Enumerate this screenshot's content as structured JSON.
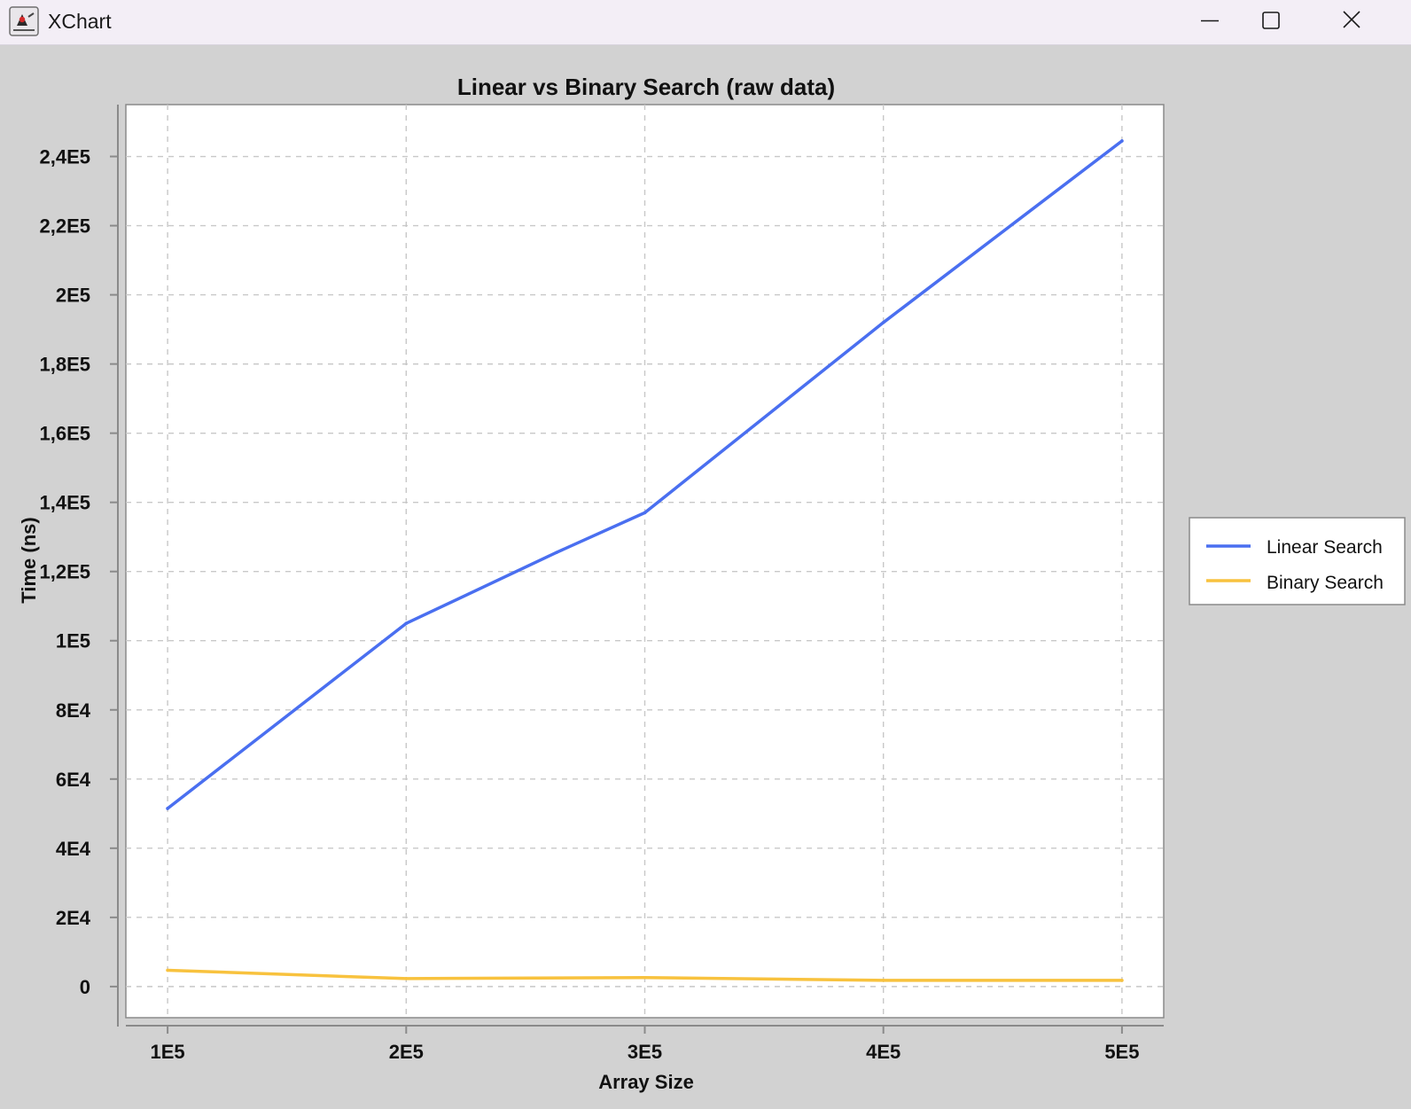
{
  "window": {
    "title": "XChart",
    "icon": "java-duke-icon",
    "controls": [
      "minimize-icon",
      "maximize-icon",
      "close-icon"
    ]
  },
  "colors": {
    "background": "#d2d2d2",
    "plot_background": "#ffffff",
    "grid": "#c8c8c8",
    "linear_series": "#4a6ff0",
    "binary_series": "#f8c23e"
  },
  "chart_data": {
    "type": "line",
    "title": "Linear vs Binary Search (raw data)",
    "xlabel": "Array Size",
    "ylabel": "Time (ns)",
    "x_ticks": [
      "1E5",
      "2E5",
      "3E5",
      "4E5",
      "5E5"
    ],
    "y_ticks": [
      "0",
      "2E4",
      "4E4",
      "6E4",
      "8E4",
      "1E5",
      "1,2E5",
      "1,4E5",
      "1,6E5",
      "1,8E5",
      "2E5",
      "2,2E5",
      "2,4E5"
    ],
    "x_tick_values": [
      100000,
      200000,
      300000,
      400000,
      500000
    ],
    "y_tick_values": [
      0,
      20000,
      40000,
      60000,
      80000,
      100000,
      120000,
      140000,
      160000,
      180000,
      200000,
      220000,
      240000
    ],
    "xlim": [
      82500,
      517500
    ],
    "ylim": [
      -9000,
      255000
    ],
    "grid": true,
    "legend_position": "right",
    "series": [
      {
        "name": "Linear Search",
        "color": "#4a6ff0",
        "x": [
          100000,
          200000,
          263000,
          300000,
          400000,
          500000
        ],
        "y": [
          51500,
          105000,
          125500,
          137000,
          192000,
          244500
        ]
      },
      {
        "name": "Binary Search",
        "color": "#f8c23e",
        "x": [
          100000,
          200000,
          300000,
          400000,
          500000
        ],
        "y": [
          4700,
          2300,
          2600,
          1800,
          1800
        ]
      }
    ]
  }
}
